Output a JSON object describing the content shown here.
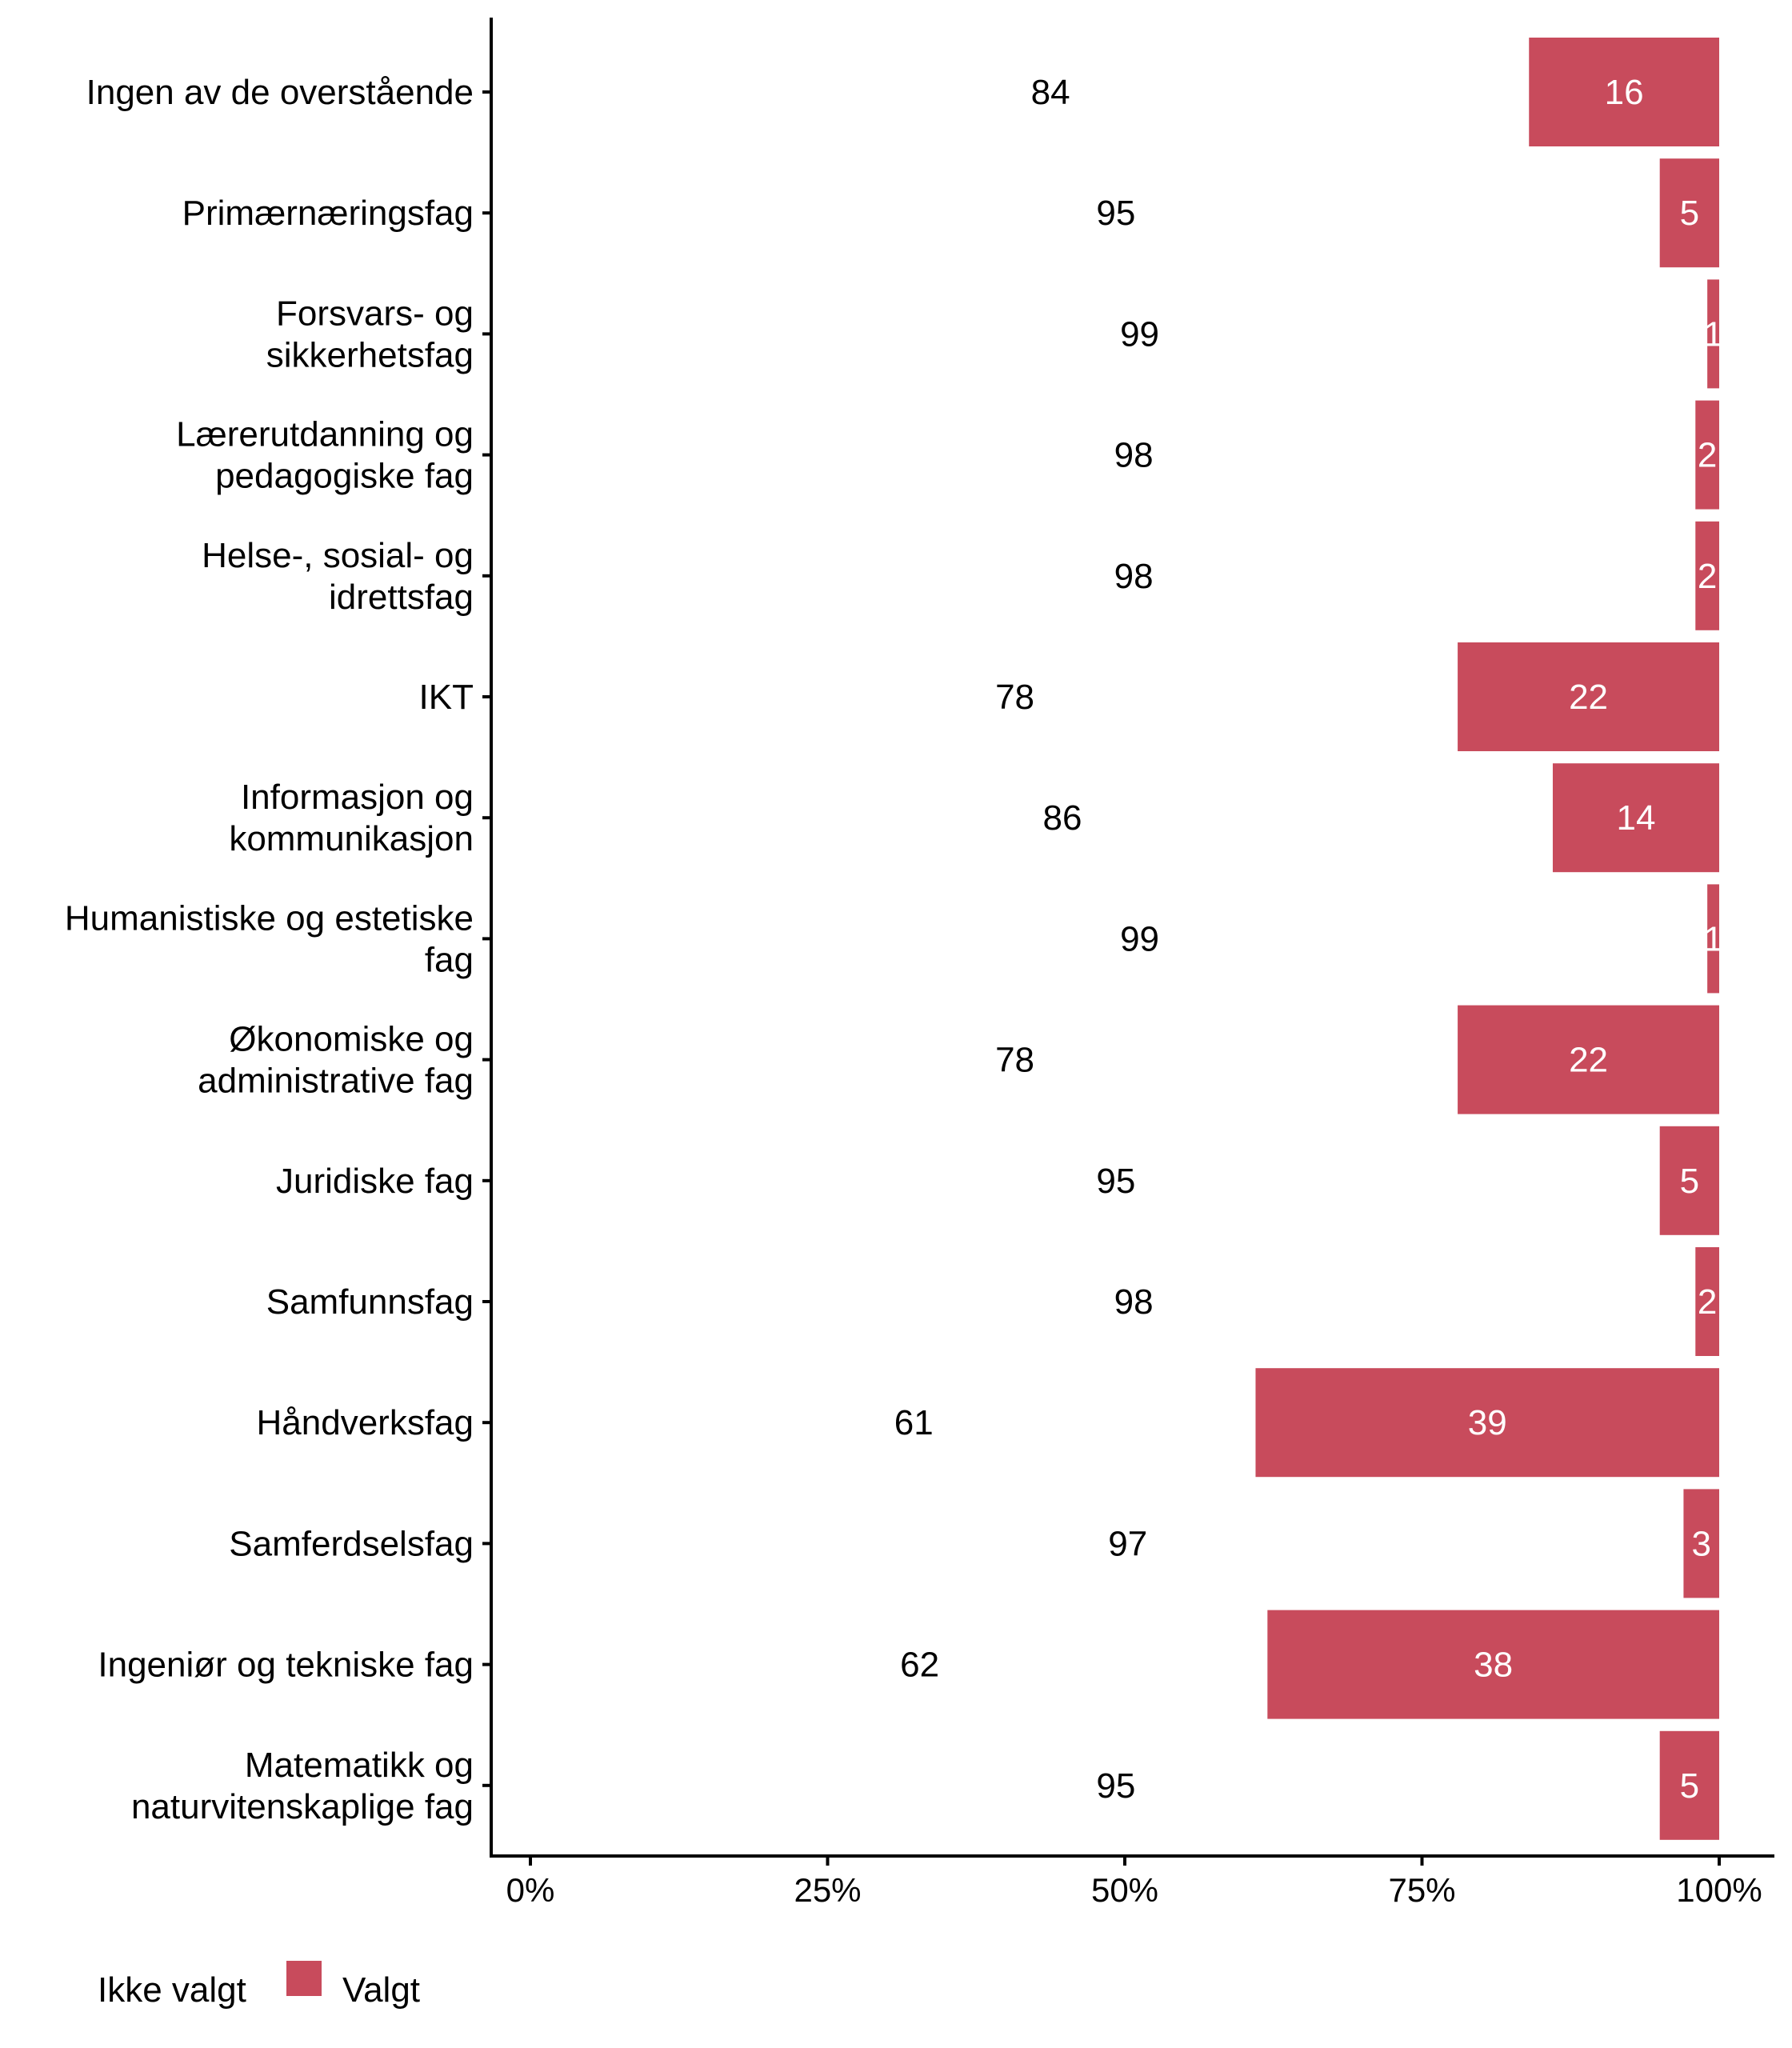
{
  "chart_data": {
    "type": "bar",
    "orientation": "horizontal",
    "stacked": true,
    "normalized": true,
    "title": "",
    "xlabel": "",
    "ylabel": "",
    "xlim": [
      0,
      100
    ],
    "x_ticks": [
      "0%",
      "25%",
      "50%",
      "75%",
      "100%"
    ],
    "x_tick_values": [
      0,
      25,
      50,
      75,
      100
    ],
    "grid": false,
    "legend_position": "bottom-left",
    "categories": [
      [
        "Ingen av de overstående"
      ],
      [
        "Primærnæringsfag"
      ],
      [
        "Forsvars- og",
        "sikkerhetsfag"
      ],
      [
        "Lærerutdanning og",
        "pedagogiske fag"
      ],
      [
        "Helse-, sosial- og",
        "idrettsfag"
      ],
      [
        "IKT"
      ],
      [
        "Informasjon og",
        "kommunikasjon"
      ],
      [
        "Humanistiske og estetiske",
        "fag"
      ],
      [
        "Økonomiske og",
        "administrative fag"
      ],
      [
        "Juridiske fag"
      ],
      [
        "Samfunnsfag"
      ],
      [
        "Håndverksfag"
      ],
      [
        "Samferdselsfag"
      ],
      [
        "Ingeniør og tekniske fag"
      ],
      [
        "Matematikk og",
        "naturvitenskaplige fag"
      ]
    ],
    "series": [
      {
        "name": "Ikke valgt",
        "color": "#ffffff",
        "values": [
          84,
          95,
          99,
          98,
          98,
          78,
          86,
          99,
          78,
          95,
          98,
          61,
          97,
          62,
          95
        ],
        "label_color": "#000000"
      },
      {
        "name": "Valgt",
        "color": "#C84B5C",
        "values": [
          16,
          5,
          1,
          2,
          2,
          22,
          14,
          1,
          22,
          5,
          2,
          39,
          3,
          38,
          5
        ],
        "label_color": "#ffffff"
      }
    ]
  },
  "legend": {
    "items": [
      {
        "label": "Ikke valgt",
        "color": "#ffffff"
      },
      {
        "label": "Valgt",
        "color": "#C84B5C"
      }
    ]
  }
}
